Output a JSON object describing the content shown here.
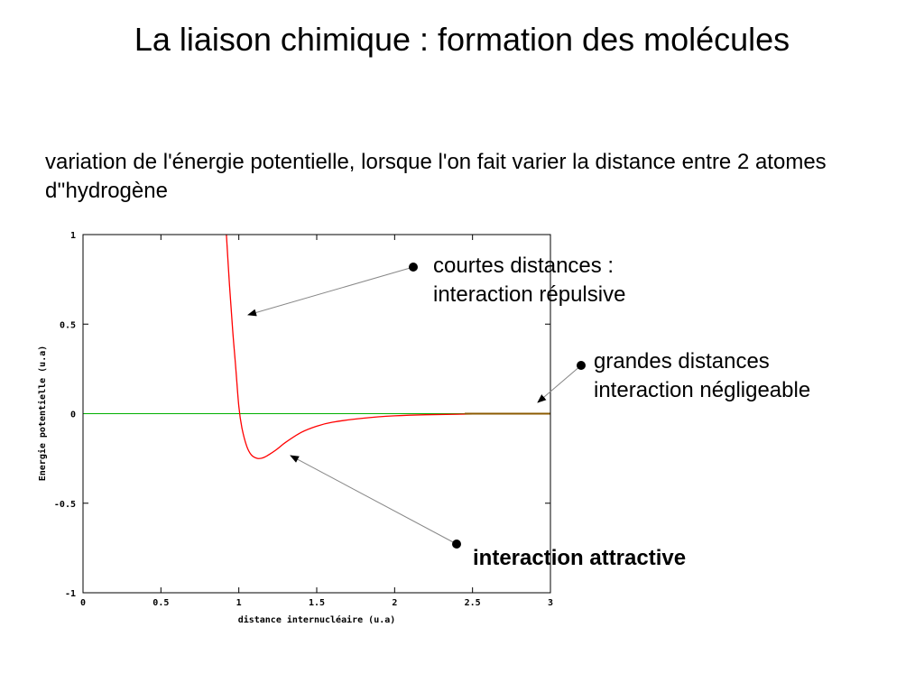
{
  "slide": {
    "title": "La liaison chimique : formation des molécules",
    "subtitle": "variation de l'énergie potentielle, lorsque l'on fait varier la distance entre 2 atomes d''hydrogène"
  },
  "annotations": {
    "repulsive_line1": "courtes distances :",
    "repulsive_line2": "interaction répulsive",
    "negligible_line1": "grandes distances",
    "negligible_line2": "interaction négligeable",
    "attractive": "interaction attractive"
  },
  "chart_data": {
    "type": "line",
    "xlabel": "distance internucléaire (u.a)",
    "ylabel": "Energie potentielle (u.a)",
    "xlim": [
      0,
      3
    ],
    "ylim": [
      -1,
      1
    ],
    "x_ticks": [
      "0",
      "0.5",
      "1",
      "1.5",
      "2",
      "2.5",
      "3"
    ],
    "y_ticks": [
      "1",
      "0.5",
      "0",
      "-0.5",
      "-1"
    ],
    "grid": false,
    "colors": {
      "curve": "#ff0000",
      "zero_line": "#00b000",
      "overlap": "#8b5a00",
      "frame": "#000000"
    },
    "series": [
      {
        "x": [
          0.92,
          0.94,
          0.96,
          0.98,
          1.0,
          1.02,
          1.05,
          1.08,
          1.12,
          1.16,
          1.2,
          1.25,
          1.3,
          1.4,
          1.5,
          1.6,
          1.8,
          2.0,
          2.2,
          2.5,
          3.0
        ],
        "y": [
          1.0,
          0.72,
          0.47,
          0.26,
          0.04,
          -0.08,
          -0.18,
          -0.23,
          -0.25,
          -0.245,
          -0.225,
          -0.195,
          -0.16,
          -0.105,
          -0.07,
          -0.048,
          -0.025,
          -0.012,
          -0.006,
          -0.002,
          0.0
        ]
      },
      {
        "x": [
          0,
          3
        ],
        "y": [
          0,
          0
        ]
      }
    ]
  }
}
